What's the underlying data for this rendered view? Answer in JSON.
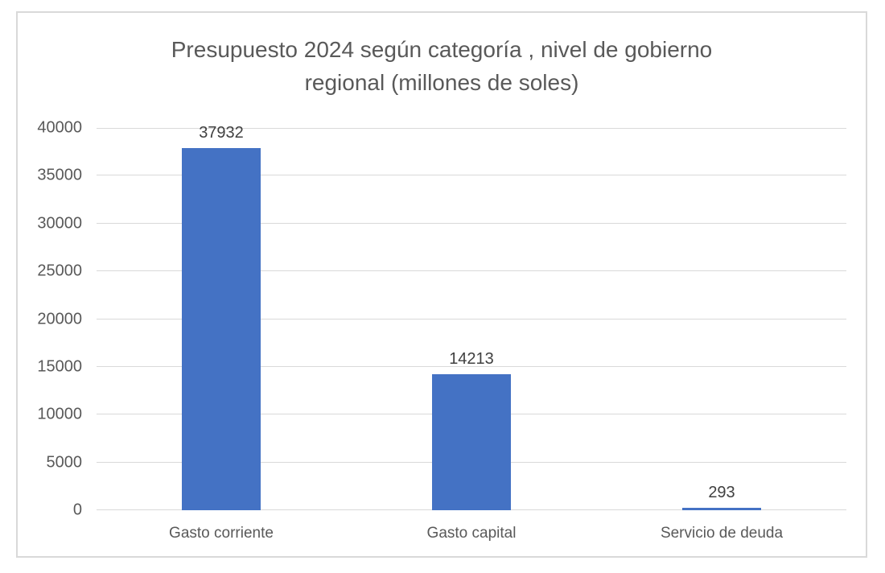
{
  "chart_data": {
    "type": "bar",
    "title": "Presupuesto 2024 según categoría , nivel de gobierno regional (millones de soles)",
    "title_lines": [
      "Presupuesto 2024 según categoría , nivel de gobierno",
      "regional (millones de soles)"
    ],
    "categories": [
      "Gasto corriente",
      "Gasto capital",
      "Servicio de deuda"
    ],
    "values": [
      37932,
      14213,
      293
    ],
    "data_labels": [
      "37932",
      "14213",
      "293"
    ],
    "xlabel": "",
    "ylabel": "",
    "ylim": [
      0,
      40000
    ],
    "ytick_step": 5000,
    "ytick_labels": [
      "0",
      "5000",
      "10000",
      "15000",
      "20000",
      "25000",
      "30000",
      "35000",
      "40000"
    ],
    "grid": true,
    "legend": "none",
    "colors": {
      "bar": "#4472C4",
      "gridline": "#D9D9D9",
      "axis_text": "#595959",
      "data_label_text": "#404040",
      "title_text": "#595959",
      "frame_border": "#D9D9D9",
      "background": "#FFFFFF"
    }
  }
}
